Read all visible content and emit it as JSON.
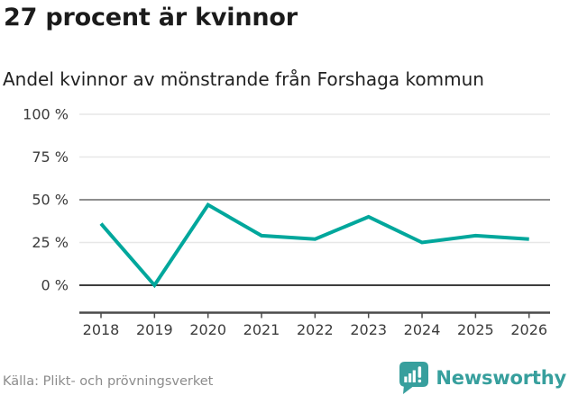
{
  "header": {
    "title": "27 procent är kvinnor",
    "subtitle": "Andel kvinnor av mönstrande från Forshaga kommun"
  },
  "chart_data": {
    "type": "line",
    "title": "27 procent är kvinnor",
    "subtitle": "Andel kvinnor av mönstrande från Forshaga kommun",
    "categories": [
      "2018",
      "2019",
      "2020",
      "2021",
      "2022",
      "2023",
      "2024",
      "2025",
      "2026"
    ],
    "series": [
      {
        "name": "andel-kvinnor-procent",
        "values": [
          36,
          0,
          47,
          29,
          27,
          40,
          25,
          29,
          27
        ]
      }
    ],
    "unit": "%",
    "ylim": [
      0,
      100
    ],
    "yticks": [
      "0 %",
      "25 %",
      "50 %",
      "75 %",
      "100 %"
    ],
    "xlabel": "",
    "ylabel": "",
    "grid": "horizontal",
    "legend_position": "none",
    "colors": {
      "line": "#00a79c",
      "gridline_default": "#e7e7e7",
      "gridline_mid": "#8e8e8e",
      "gridline_zero": "#3d3d3d",
      "axis": "#4a4a4a",
      "tick_label": "#3c3c3c"
    }
  },
  "footer": {
    "source": "Källa: Plikt- och prövningsverket",
    "brand_name": "Newsworthy",
    "brand_color": "#379f9d",
    "brand_icon": "newsworthy-badge-icon"
  },
  "colors": {
    "background": "#ffffff",
    "title_text": "#1b1b1b"
  }
}
